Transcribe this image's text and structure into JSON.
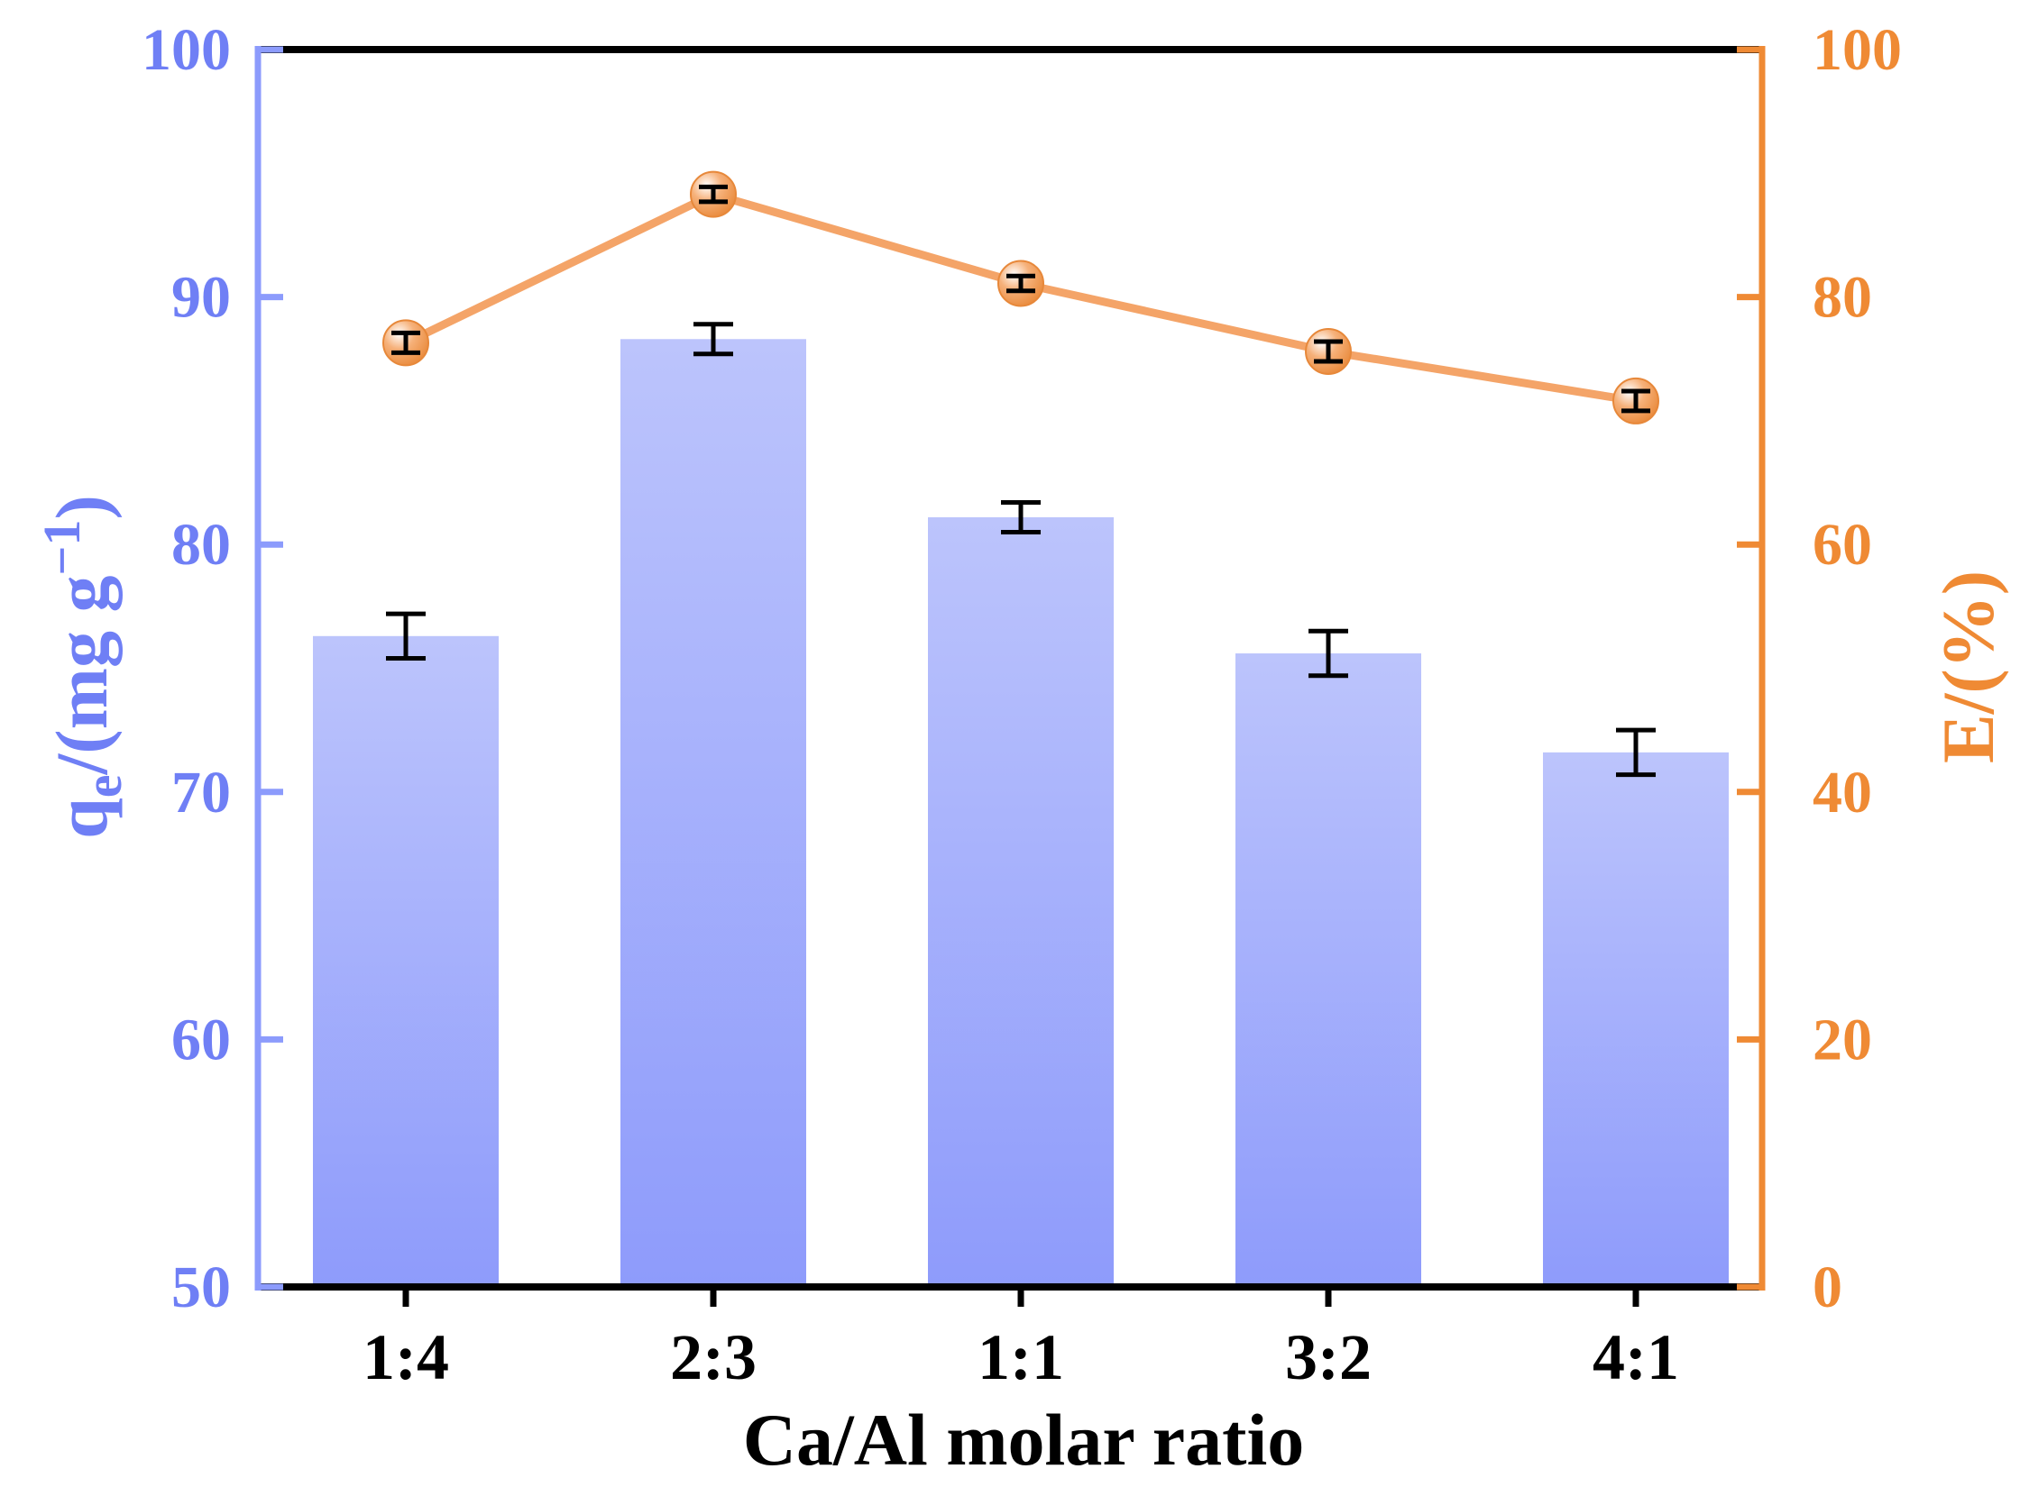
{
  "chart_data": {
    "type": "bar+line",
    "categories": [
      "1:4",
      "2:3",
      "1:1",
      "3:2",
      "4:1"
    ],
    "xlabel": "Ca/Al molar ratio",
    "left_axis": {
      "label_main": "q",
      "label_sub": "e",
      "label_mid": "/(mg g",
      "label_sup": "−1",
      "label_end": ")",
      "ylim": [
        50,
        100
      ],
      "ticks": [
        "50",
        "60",
        "70",
        "80",
        "90",
        "100"
      ],
      "color": "#6f7ff5"
    },
    "right_axis": {
      "label": "E/(%)",
      "ylim": [
        0,
        100
      ],
      "ticks": [
        "0",
        "20",
        "40",
        "60",
        "80",
        "100"
      ],
      "color": "#ef8a34"
    },
    "series": [
      {
        "name": "qe",
        "kind": "bar",
        "axis": "left",
        "values": [
          76.3,
          88.3,
          81.1,
          75.6,
          71.6
        ],
        "errors": [
          0.9,
          0.6,
          0.6,
          0.9,
          0.9
        ],
        "color_top": "#bcc4fc",
        "color_bottom": "#8e9bfb"
      },
      {
        "name": "E",
        "kind": "line",
        "axis": "right",
        "values": [
          76.3,
          88.3,
          81.1,
          75.6,
          71.6
        ],
        "errors": [
          0.8,
          0.6,
          0.6,
          0.8,
          0.8
        ],
        "color": "#f4a468",
        "marker_color": "#f0a25e"
      }
    ],
    "grid": false
  }
}
